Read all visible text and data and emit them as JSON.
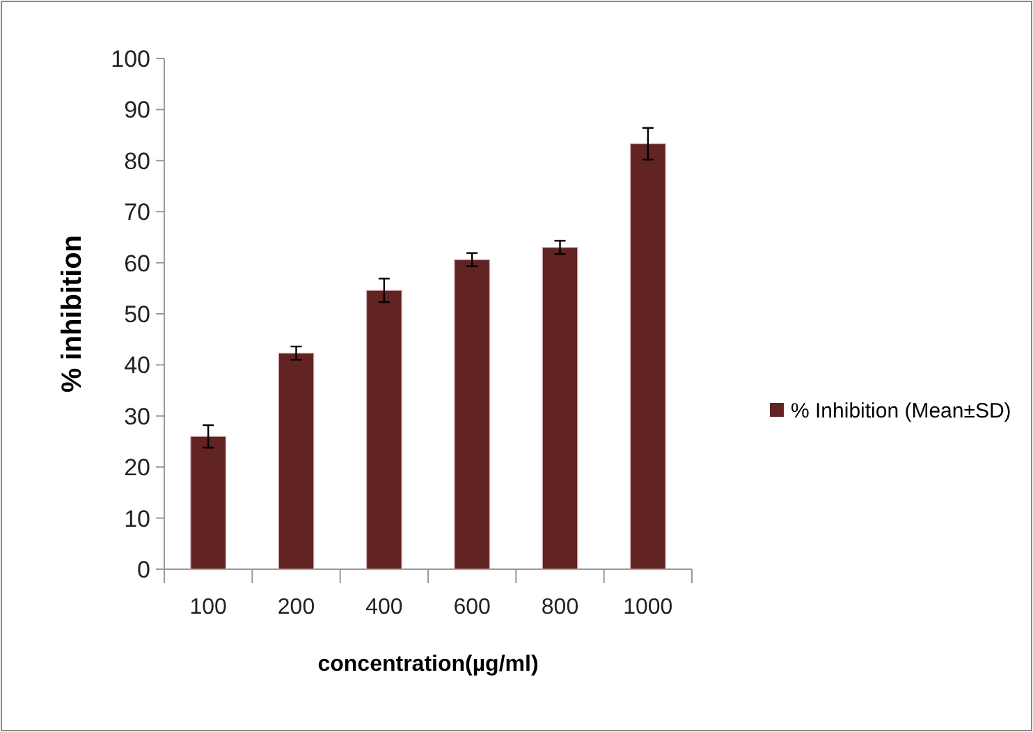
{
  "chart_data": {
    "type": "bar",
    "xlabel": "concentration(µg/ml)",
    "ylabel": "% inhibition",
    "categories": [
      "100",
      "200",
      "400",
      "600",
      "800",
      "1000"
    ],
    "series": [
      {
        "name": "% Inhibition (Mean±SD)",
        "color": "#622323",
        "values": [
          26,
          42.3,
          54.6,
          60.6,
          63,
          83.3
        ],
        "errors": [
          2.2,
          1.3,
          2.3,
          1.3,
          1.3,
          3.1
        ]
      }
    ],
    "ylim": [
      0,
      100
    ],
    "yticks": [
      0,
      10,
      20,
      30,
      40,
      50,
      60,
      70,
      80,
      90,
      100
    ],
    "grid": false,
    "legend": "right"
  }
}
